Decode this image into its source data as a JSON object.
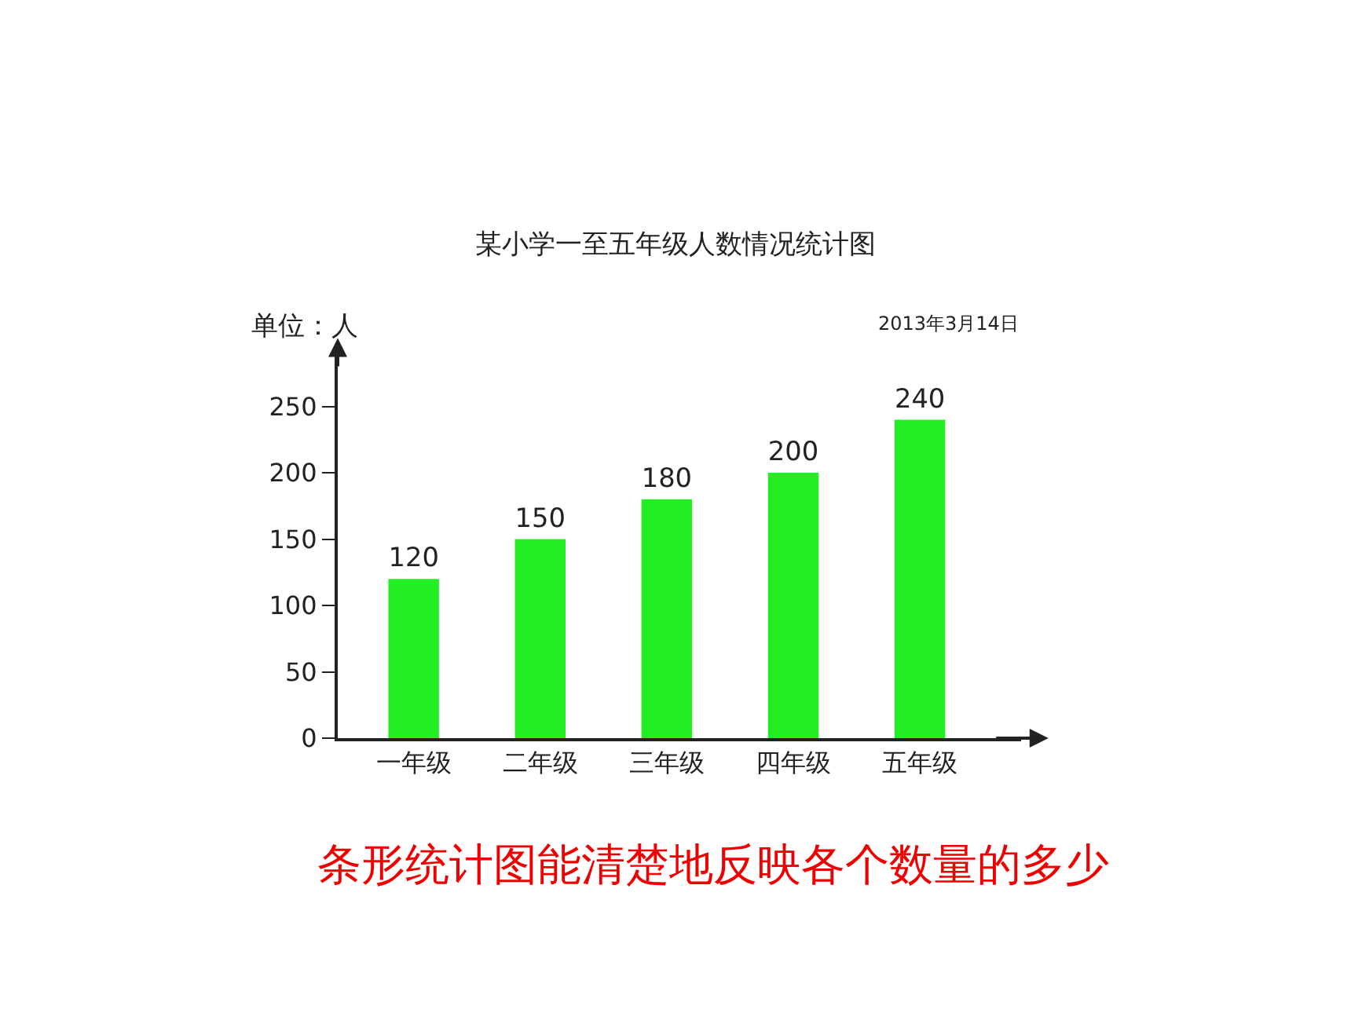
{
  "chart_data": {
    "type": "bar",
    "title": "某小学一至五年级人数情况统计图",
    "ylabel": "单位：人",
    "categories": [
      "一年级",
      "二年级",
      "三年级",
      "四年级",
      "五年级"
    ],
    "values": [
      120,
      150,
      180,
      200,
      240
    ],
    "color": "#22ee22",
    "data_labels": true,
    "ylim": [
      0,
      290
    ],
    "yticks": [
      0,
      50,
      100,
      150,
      200,
      250
    ],
    "annotations": [
      "2013年3月14日",
      "条形统计图能清楚地反映各个数量的多少"
    ]
  }
}
